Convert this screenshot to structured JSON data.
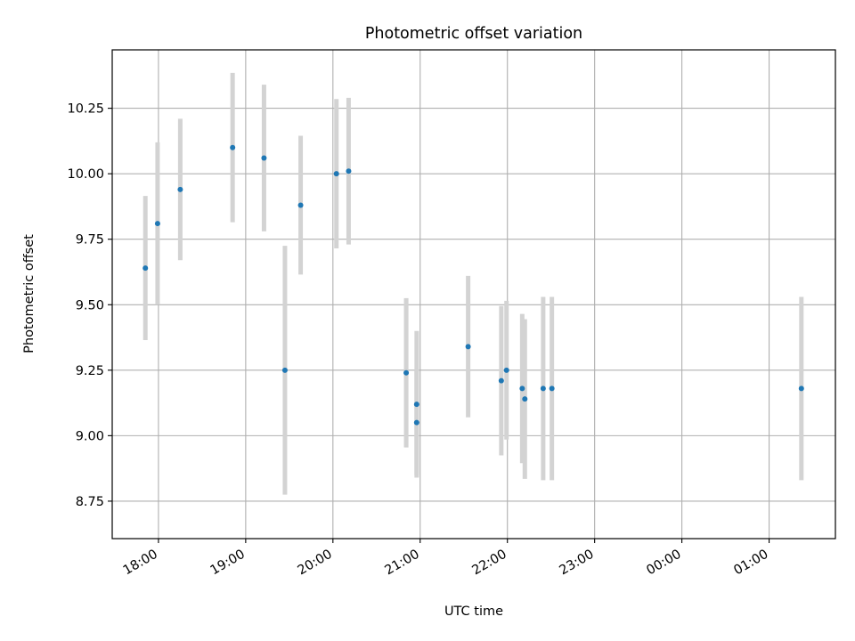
{
  "chart_data": {
    "type": "scatter",
    "title": "Photometric offset variation",
    "xlabel": "UTC time",
    "ylabel": "Photometric offset",
    "x_unit": "UTC hour (values above 24 are the next day)",
    "xlim": [
      17.47,
      25.76
    ],
    "ylim": [
      8.607,
      10.473
    ],
    "x_ticks": [
      {
        "value": 18,
        "label": "18:00"
      },
      {
        "value": 19,
        "label": "19:00"
      },
      {
        "value": 20,
        "label": "20:00"
      },
      {
        "value": 21,
        "label": "21:00"
      },
      {
        "value": 22,
        "label": "22:00"
      },
      {
        "value": 23,
        "label": "23:00"
      },
      {
        "value": 24,
        "label": "00:00"
      },
      {
        "value": 25,
        "label": "01:00"
      }
    ],
    "y_ticks": [
      {
        "value": 8.75,
        "label": "8.75"
      },
      {
        "value": 9.0,
        "label": "9.00"
      },
      {
        "value": 9.25,
        "label": "9.25"
      },
      {
        "value": 9.5,
        "label": "9.50"
      },
      {
        "value": 9.75,
        "label": "9.75"
      },
      {
        "value": 10.0,
        "label": "10.00"
      },
      {
        "value": 10.25,
        "label": "10.25"
      }
    ],
    "grid": true,
    "colors": {
      "point": "#1f77b4",
      "errorbar": "#d3d3d3",
      "grid": "#b0b0b0"
    },
    "series": [
      {
        "points": [
          {
            "x": 17.85,
            "y": 9.64,
            "yerr": 0.275
          },
          {
            "x": 17.99,
            "y": 9.81,
            "yerr": 0.31
          },
          {
            "x": 18.25,
            "y": 9.94,
            "yerr": 0.27
          },
          {
            "x": 18.85,
            "y": 10.1,
            "yerr": 0.285
          },
          {
            "x": 19.21,
            "y": 10.06,
            "yerr": 0.28
          },
          {
            "x": 19.45,
            "y": 9.25,
            "yerr": 0.475
          },
          {
            "x": 19.63,
            "y": 9.88,
            "yerr": 0.265
          },
          {
            "x": 20.04,
            "y": 10.0,
            "yerr": 0.285
          },
          {
            "x": 20.18,
            "y": 10.01,
            "yerr": 0.28
          },
          {
            "x": 20.84,
            "y": 9.24,
            "yerr": 0.285
          },
          {
            "x": 20.96,
            "y": 9.12,
            "yerr": 0.28
          },
          {
            "x": 20.96,
            "y": 9.05,
            "yerr": 0.2
          },
          {
            "x": 21.55,
            "y": 9.34,
            "yerr": 0.27
          },
          {
            "x": 21.93,
            "y": 9.21,
            "yerr": 0.285
          },
          {
            "x": 21.99,
            "y": 9.25,
            "yerr": 0.265
          },
          {
            "x": 22.17,
            "y": 9.18,
            "yerr": 0.285
          },
          {
            "x": 22.2,
            "y": 9.14,
            "yerr": 0.305
          },
          {
            "x": 22.41,
            "y": 9.18,
            "yerr": 0.35
          },
          {
            "x": 22.51,
            "y": 9.18,
            "yerr": 0.35
          },
          {
            "x": 25.37,
            "y": 9.18,
            "yerr": 0.35
          }
        ]
      }
    ]
  }
}
